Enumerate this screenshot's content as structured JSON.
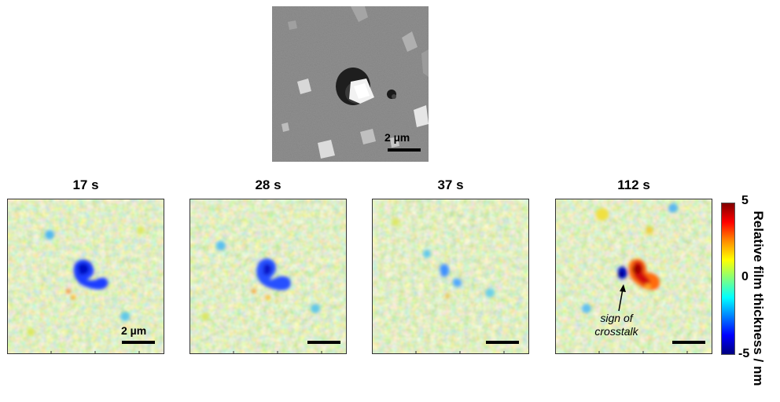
{
  "sem_image": {
    "scale_label": "2 µm"
  },
  "panels": [
    {
      "title": "17 s",
      "scale_label": "2 µm"
    },
    {
      "title": "28 s",
      "scale_label": ""
    },
    {
      "title": "37 s",
      "scale_label": ""
    },
    {
      "title": "112 s",
      "scale_label": ""
    }
  ],
  "annotation": {
    "line1": "sign of",
    "line2": "crosstalk"
  },
  "colorbar": {
    "label": "Relative film thickness / nm",
    "ticks": [
      "5",
      "0",
      "-5"
    ],
    "range": [
      -5,
      5
    ],
    "colors": [
      "#000080",
      "#0000ff",
      "#0080ff",
      "#00ffff",
      "#7fff7f",
      "#ffff00",
      "#ff8c00",
      "#ff0000",
      "#800000"
    ]
  }
}
